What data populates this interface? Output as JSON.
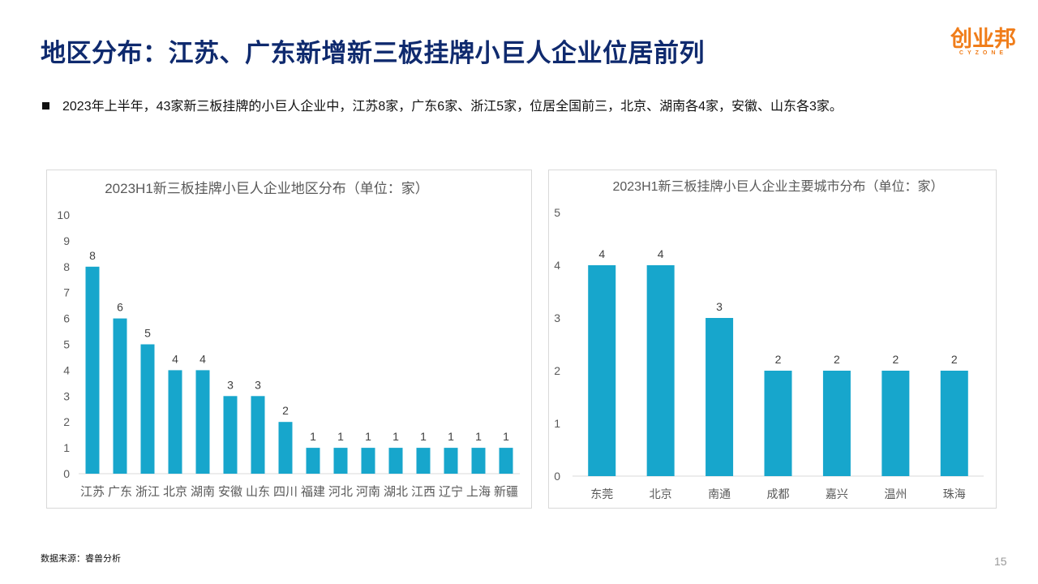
{
  "header": {
    "title": "地区分布：江苏、广东新增新三板挂牌小巨人企业位居前列",
    "logo_cn": "创业邦",
    "logo_en": "CYZONE"
  },
  "bullet": "2023年上半年，43家新三板挂牌的小巨人企业中，江苏8家，广东6家、浙江5家，位居全国前三，北京、湖南各4家，安徽、山东各3家。",
  "footer": {
    "source": "数据来源：睿兽分析",
    "page": "15"
  },
  "colors": {
    "bar": "#17a6cc",
    "title": "#0f2a6e",
    "logo": "#f07d1a"
  },
  "chart_data": [
    {
      "type": "bar",
      "title": "2023H1新三板挂牌小巨人企业地区分布（单位：家）",
      "categories": [
        "江苏",
        "广东",
        "浙江",
        "北京",
        "湖南",
        "安徽",
        "山东",
        "四川",
        "福建",
        "河北",
        "河南",
        "湖北",
        "江西",
        "辽宁",
        "上海",
        "新疆"
      ],
      "values": [
        8,
        6,
        5,
        4,
        4,
        3,
        3,
        2,
        1,
        1,
        1,
        1,
        1,
        1,
        1,
        1
      ],
      "ylim": [
        0,
        10
      ],
      "yticks": [
        0,
        1,
        2,
        3,
        4,
        5,
        6,
        7,
        8,
        9,
        10
      ],
      "grid": false
    },
    {
      "type": "bar",
      "title": "2023H1新三板挂牌小巨人企业主要城市分布（单位：家）",
      "categories": [
        "东莞",
        "北京",
        "南通",
        "成都",
        "嘉兴",
        "温州",
        "珠海"
      ],
      "values": [
        4,
        4,
        3,
        2,
        2,
        2,
        2
      ],
      "ylim": [
        0,
        5
      ],
      "yticks": [
        0,
        1,
        2,
        3,
        4,
        5
      ],
      "grid": false
    }
  ]
}
